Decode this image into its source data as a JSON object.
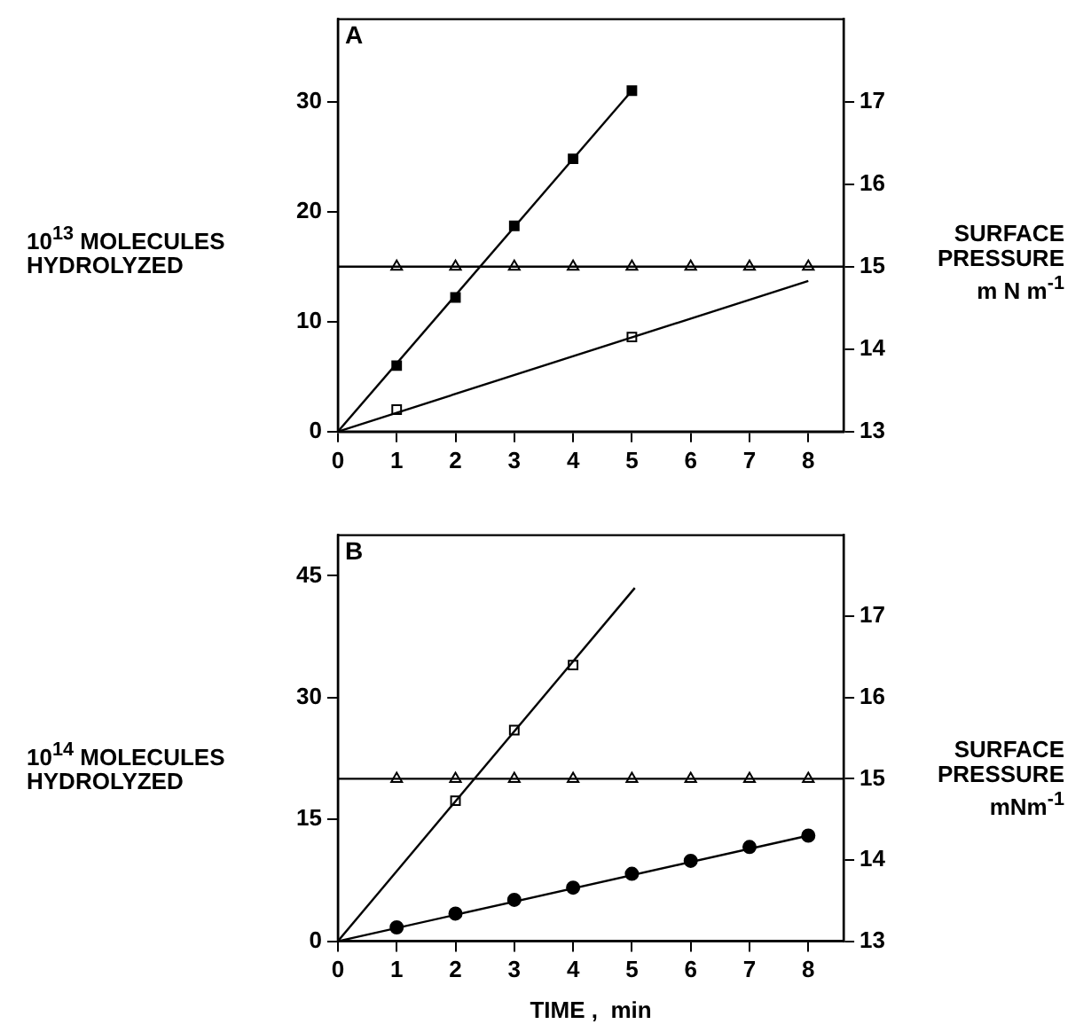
{
  "chart_data": [
    {
      "type": "line",
      "annotations": [
        "A"
      ],
      "ylabel": "10$^{13}$ MOLECULES HYDROLYZED",
      "y2label": "SURFACE PRESSURE m N m$^{-1}$",
      "xlim": [
        0,
        8.6
      ],
      "xticks": [
        0,
        1,
        2,
        3,
        4,
        5,
        6,
        7,
        8
      ],
      "ylim": [
        0,
        37.5
      ],
      "yticks": [
        0,
        10,
        20,
        30
      ],
      "y2lim": [
        13,
        18
      ],
      "y2ticks": [
        13,
        14,
        15,
        16,
        17
      ],
      "grid": false,
      "legend": false,
      "line_style": "solid",
      "series": [
        {
          "color": "#000000",
          "marker": "none",
          "x": [
            0,
            5
          ],
          "values": [
            0,
            31
          ]
        },
        {
          "type": "scatter",
          "color": "#000000",
          "marker": "square",
          "x": [
            1,
            2,
            3,
            4,
            5
          ],
          "values": [
            6,
            12.2,
            18.7,
            24.8,
            31
          ]
        },
        {
          "color": "#000000",
          "marker": "none",
          "x": [
            0,
            8
          ],
          "values": [
            0,
            13.7
          ]
        },
        {
          "type": "scatter",
          "color": "#ffffff",
          "marker": "square",
          "x": [
            1,
            5
          ],
          "values": [
            2,
            8.6
          ]
        },
        {
          "color": "#000000",
          "marker": "none",
          "axis": "y2",
          "x": [
            0,
            8.6
          ],
          "values": [
            15,
            15
          ]
        },
        {
          "type": "scatter",
          "color": "#ffffff",
          "marker": "triangle",
          "axis": "y2",
          "x": [
            1,
            2,
            3,
            4,
            5,
            6,
            7,
            8
          ],
          "values": [
            15,
            15,
            15,
            15,
            15,
            15,
            15,
            15
          ]
        }
      ]
    },
    {
      "type": "line",
      "annotations": [
        "B"
      ],
      "xlabel": "TIME ,  min",
      "ylabel": "10$^{14}$ MOLECULES HYDROLYZED",
      "y2label": "SURFACE PRESSURE mNm$^{-1}$",
      "xlim": [
        0,
        8.6
      ],
      "xticks": [
        0,
        1,
        2,
        3,
        4,
        5,
        6,
        7,
        8
      ],
      "ylim": [
        0,
        50
      ],
      "yticks": [
        0,
        15,
        30,
        45
      ],
      "y2lim": [
        13,
        18
      ],
      "y2ticks": [
        13,
        14,
        15,
        16,
        17
      ],
      "grid": false,
      "legend": false,
      "line_style": "solid",
      "series": [
        {
          "color": "#000000",
          "marker": "none",
          "x": [
            0,
            5.05
          ],
          "values": [
            0,
            43.5
          ]
        },
        {
          "type": "scatter",
          "color": "#ffffff",
          "marker": "square",
          "x": [
            2,
            3,
            4
          ],
          "values": [
            17.3,
            26,
            34
          ]
        },
        {
          "color": "#000000",
          "marker": "none",
          "x": [
            0,
            8
          ],
          "values": [
            0,
            13
          ]
        },
        {
          "type": "scatter",
          "color": "#000000",
          "marker": "circle",
          "x": [
            1,
            2,
            3,
            4,
            5,
            6,
            7,
            8
          ],
          "values": [
            1.7,
            3.4,
            5.1,
            6.6,
            8.3,
            9.9,
            11.6,
            13
          ]
        },
        {
          "color": "#000000",
          "marker": "none",
          "axis": "y2",
          "x": [
            0,
            8.6
          ],
          "values": [
            15,
            15
          ]
        },
        {
          "type": "scatter",
          "color": "#ffffff",
          "marker": "triangle",
          "axis": "y2",
          "x": [
            1,
            2,
            3,
            4,
            5,
            6,
            7,
            8
          ],
          "values": [
            15,
            15,
            15,
            15,
            15,
            15,
            15,
            15
          ]
        }
      ]
    }
  ]
}
